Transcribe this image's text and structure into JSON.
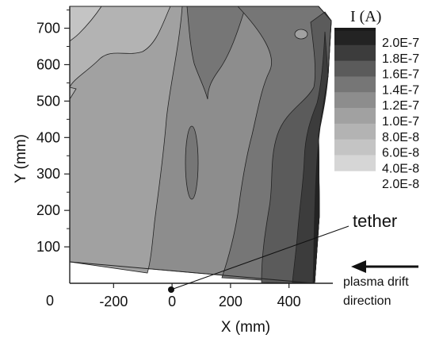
{
  "chart_data": {
    "type": "heatmap",
    "subtype": "filled-contour",
    "xlabel": "X (mm)",
    "ylabel": "Y (mm)",
    "xlim": [
      -350,
      550
    ],
    "ylim": [
      0,
      760
    ],
    "x_ticks": [
      {
        "value": -200,
        "label": "-200"
      },
      {
        "value": 0,
        "label": "0"
      },
      {
        "value": 200,
        "label": "200"
      },
      {
        "value": 400,
        "label": "400"
      }
    ],
    "y_ticks": [
      {
        "value": 0,
        "label": "0"
      },
      {
        "value": 100,
        "label": "100"
      },
      {
        "value": 200,
        "label": "200"
      },
      {
        "value": 300,
        "label": "300"
      },
      {
        "value": 400,
        "label": "400"
      },
      {
        "value": 500,
        "label": "500"
      },
      {
        "value": 600,
        "label": "600"
      },
      {
        "value": 700,
        "label": "700"
      }
    ],
    "colorbar": {
      "title": "I (A)",
      "placement": "top-right",
      "levels": [
        "2.0E-7",
        "1.8E-7",
        "1.6E-7",
        "1.4E-7",
        "1.2E-7",
        "1.0E-7",
        "8.0E-8",
        "6.0E-8",
        "4.0E-8",
        "2.0E-8"
      ],
      "level_values": [
        2e-07,
        1.8e-07,
        1.6e-07,
        1.4e-07,
        1.2e-07,
        1e-07,
        8e-08,
        6e-08,
        4e-08,
        2e-08
      ],
      "colors": [
        "#232323",
        "#3c3c3c",
        "#5b5b5b",
        "#767676",
        "#8d8d8d",
        "#a1a1a1",
        "#b3b3b3",
        "#c4c4c4",
        "#d6d6d6"
      ]
    },
    "regions": [
      {
        "level": "2.0E-7",
        "x": [
          480,
          545
        ],
        "y": [
          0,
          560
        ]
      },
      {
        "level": "1.8E-7",
        "x": [
          440,
          545
        ],
        "y": [
          0,
          620
        ]
      },
      {
        "level": "1.6E-7",
        "x": [
          320,
          545
        ],
        "y": [
          0,
          700
        ]
      },
      {
        "level": "1.4E-7",
        "x": [
          -10,
          545
        ],
        "y": [
          0,
          760
        ]
      },
      {
        "level": "1.2E-7",
        "x": [
          -350,
          440
        ],
        "y": [
          0,
          760
        ]
      },
      {
        "level": "1.0E-7",
        "x": [
          -350,
          160
        ],
        "y": [
          0,
          760
        ]
      },
      {
        "level": "8.0E-8",
        "x": [
          -350,
          40
        ],
        "y": [
          440,
          760
        ]
      },
      {
        "level": "6.0E-8",
        "x": [
          -350,
          -150
        ],
        "y": [
          580,
          760
        ]
      }
    ],
    "annotations": [
      {
        "text": "tether",
        "x": 0,
        "y": 0
      },
      {
        "text": "plasma drift direction",
        "lines": [
          "plasma drift",
          "direction"
        ]
      }
    ]
  }
}
